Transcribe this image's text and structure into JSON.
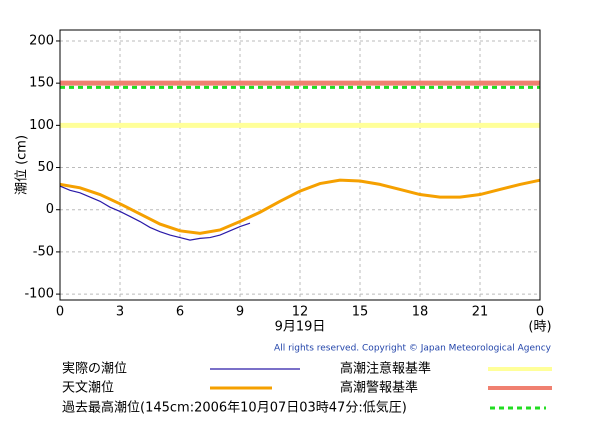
{
  "chart_data": {
    "type": "line",
    "ylabel": "潮位 (cm)",
    "xlabel": "9月19日",
    "xunit": "(時)",
    "copyright": "All rights reserved. Copyright © Japan Meteorological Agency",
    "xlim": [
      0,
      24
    ],
    "xticks": [
      0,
      3,
      6,
      9,
      12,
      15,
      18,
      21,
      {
        "value": 24,
        "label": "0"
      }
    ],
    "ylim": [
      -107,
      213
    ],
    "yticks": [
      -100,
      -50,
      0,
      50,
      100,
      150,
      200
    ],
    "grid": true,
    "series": [
      {
        "name": "実際の潮位",
        "color": "#2a1aa8",
        "x": [
          0,
          0.5,
          1,
          1.5,
          2,
          2.5,
          3,
          3.5,
          4,
          4.5,
          5,
          5.5,
          6,
          6.5,
          7,
          7.5,
          8,
          8.5,
          9,
          9.5
        ],
        "values": [
          28,
          23,
          20,
          15,
          10,
          3,
          -2,
          -8,
          -14,
          -21,
          -26,
          -30,
          -33,
          -36,
          -34,
          -33,
          -30,
          -25,
          -20,
          -16
        ]
      },
      {
        "name": "天文潮位",
        "color": "#f5a000",
        "x": [
          0,
          1,
          2,
          3,
          4,
          5,
          6,
          7,
          8,
          9,
          10,
          11,
          12,
          13,
          14,
          15,
          16,
          17,
          18,
          19,
          20,
          21,
          22,
          23,
          24
        ],
        "values": [
          30,
          26,
          18,
          7,
          -5,
          -17,
          -25,
          -28,
          -24,
          -14,
          -3,
          10,
          22,
          31,
          35,
          34,
          30,
          24,
          18,
          15,
          15,
          18,
          24,
          30,
          35
        ]
      }
    ],
    "reference_lines": [
      {
        "name": "高潮注意報基準",
        "value": 100,
        "color": "#ffff99",
        "dashed": false
      },
      {
        "name": "高潮警報基準",
        "value": 150,
        "color": "#f08070",
        "dashed": false
      },
      {
        "name": "過去最高潮位(145cm:2006年10月07日03時47分:低気圧)",
        "value": 145,
        "color": "#22dd22",
        "dashed": true
      }
    ]
  }
}
